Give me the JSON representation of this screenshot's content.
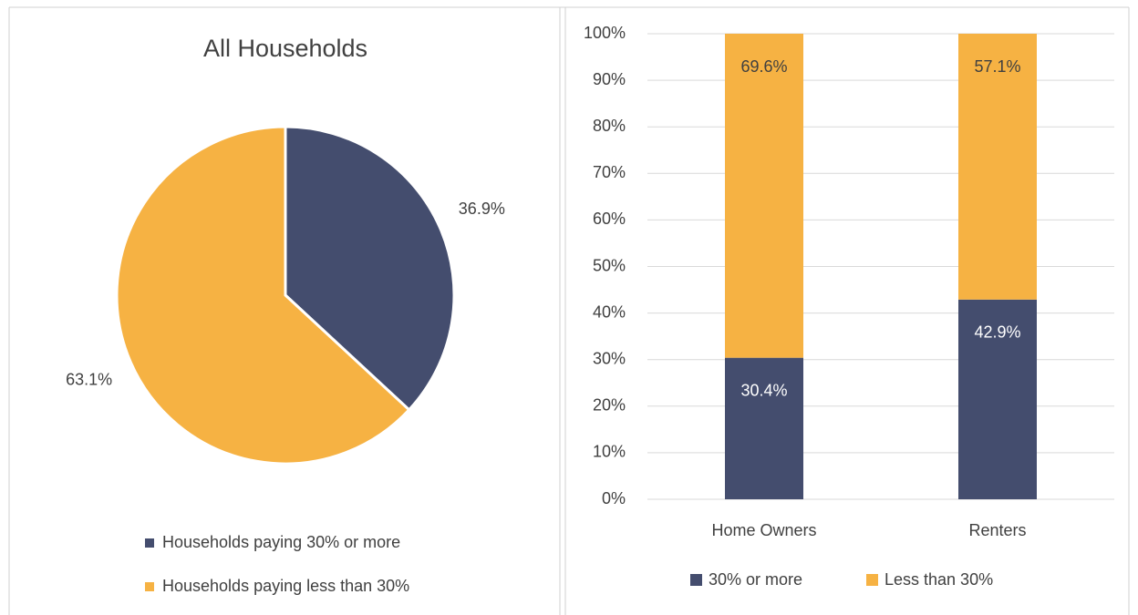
{
  "chart_data": [
    {
      "type": "pie",
      "title": "All Households",
      "categories": [
        "Households paying 30% or more",
        "Households paying less than 30%"
      ],
      "values": [
        36.9,
        63.1
      ],
      "value_labels": [
        "36.9%",
        "63.1%"
      ],
      "colors": [
        "#444d6e",
        "#f6b243"
      ],
      "legend": "bottom"
    },
    {
      "type": "bar",
      "stacked": true,
      "categories": [
        "Home Owners",
        "Renters"
      ],
      "series": [
        {
          "name": "30% or more",
          "color": "#444d6e",
          "values": [
            30.4,
            42.9
          ],
          "value_labels": [
            "30.4%",
            "42.9%"
          ]
        },
        {
          "name": "Less than 30%",
          "color": "#f6b243",
          "values": [
            69.6,
            57.1
          ],
          "value_labels": [
            "69.6%",
            "57.1%"
          ]
        }
      ],
      "ylim": [
        0,
        100
      ],
      "yticks": [
        {
          "value": 0,
          "label": "0%"
        },
        {
          "value": 10,
          "label": "10%"
        },
        {
          "value": 20,
          "label": "20%"
        },
        {
          "value": 30,
          "label": "30%"
        },
        {
          "value": 40,
          "label": "40%"
        },
        {
          "value": 50,
          "label": "50%"
        },
        {
          "value": 60,
          "label": "60%"
        },
        {
          "value": 70,
          "label": "70%"
        },
        {
          "value": 80,
          "label": "80%"
        },
        {
          "value": 90,
          "label": "90%"
        },
        {
          "value": 100,
          "label": "100%"
        }
      ],
      "grid": true,
      "legend": "bottom"
    }
  ]
}
